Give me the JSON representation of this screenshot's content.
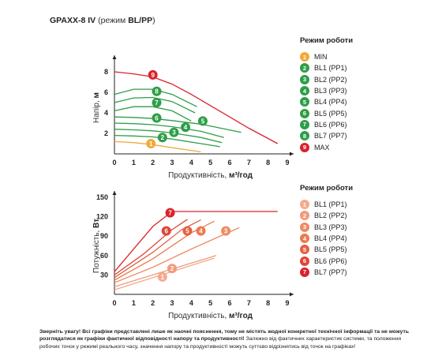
{
  "header": {
    "model_prefix": "GPA",
    "model_mid": "XX-8 IV",
    "subtitle_prefix": "(режим ",
    "subtitle_mode": "BL/PP",
    "subtitle_suffix": ")"
  },
  "legend_top": {
    "title": "Режим роботи",
    "items": [
      {
        "num": "1",
        "label": "MIN",
        "color": "#F2A93B"
      },
      {
        "num": "2",
        "label": "BL1 (PP1)",
        "color": "#2E9E48"
      },
      {
        "num": "3",
        "label": "BL2 (PP2)",
        "color": "#2E9E48"
      },
      {
        "num": "4",
        "label": "BL3 (PP3)",
        "color": "#2E9E48"
      },
      {
        "num": "5",
        "label": "BL4 (PP4)",
        "color": "#2E9E48"
      },
      {
        "num": "6",
        "label": "BL5 (PP5)",
        "color": "#2E9E48"
      },
      {
        "num": "7",
        "label": "BL6 (PP6)",
        "color": "#2E9E48"
      },
      {
        "num": "8",
        "label": "BL7 (PP7)",
        "color": "#2E9E48"
      },
      {
        "num": "9",
        "label": "MAX",
        "color": "#D9232D"
      }
    ]
  },
  "legend_bottom": {
    "title": "Режим роботи",
    "items": [
      {
        "num": "1",
        "label": "BL1 (PP1)",
        "color": "#F4A98E"
      },
      {
        "num": "2",
        "label": "BL2 (PP2)",
        "color": "#F09B7A"
      },
      {
        "num": "3",
        "label": "BL3 (PP3)",
        "color": "#EE8B62"
      },
      {
        "num": "4",
        "label": "BL4 (PP4)",
        "color": "#EB7A4E"
      },
      {
        "num": "5",
        "label": "BL5 (PP5)",
        "color": "#E56041"
      },
      {
        "num": "6",
        "label": "BL6 (PP6)",
        "color": "#DE4638"
      },
      {
        "num": "7",
        "label": "BL7 (PP7)",
        "color": "#D9232D"
      }
    ]
  },
  "chart_data": [
    {
      "type": "line",
      "title": "",
      "xlabel_text": "Продуктивність,",
      "xlabel_unit": "м³/год",
      "ylabel_text": "Напір,",
      "ylabel_unit": "м",
      "xlim": [
        0,
        9
      ],
      "ylim": [
        0,
        9
      ],
      "xticks": [
        "0",
        "1",
        "2",
        "3",
        "4",
        "5",
        "6",
        "7",
        "8",
        "9"
      ],
      "yticks": [
        "2",
        "4",
        "6",
        "8"
      ],
      "grid": false,
      "legend_position": "right",
      "series": [
        {
          "name": "MIN",
          "num": "1",
          "color": "#F2A93B",
          "x": [
            0,
            1,
            2,
            3,
            4.5
          ],
          "y": [
            1.2,
            1.1,
            0.9,
            0.6,
            0.2
          ],
          "marker": [
            1.9,
            1.0
          ]
        },
        {
          "name": "BL1 (PP1)",
          "num": "2",
          "color": "#2E9E48",
          "x": [
            0,
            1,
            2,
            3,
            4.5,
            5.5
          ],
          "y": [
            1.8,
            1.75,
            1.65,
            1.45,
            1.0,
            0.7
          ],
          "marker": [
            2.5,
            1.6
          ]
        },
        {
          "name": "BL2 (PP2)",
          "num": "3",
          "color": "#2E9E48",
          "x": [
            0,
            1,
            2,
            3,
            4.5,
            5.6
          ],
          "y": [
            2.4,
            2.35,
            2.25,
            2.05,
            1.6,
            1.1
          ],
          "marker": [
            3.1,
            2.1
          ]
        },
        {
          "name": "BL3 (PP3)",
          "num": "4",
          "color": "#2E9E48",
          "x": [
            0,
            1,
            2,
            3,
            4.5,
            5.7
          ],
          "y": [
            3.0,
            2.95,
            2.85,
            2.65,
            2.2,
            1.6
          ],
          "marker": [
            3.7,
            2.6
          ]
        },
        {
          "name": "BL4 (PP4)",
          "num": "5",
          "color": "#2E9E48",
          "x": [
            0,
            1,
            2,
            3,
            4.5,
            6.6
          ],
          "y": [
            3.6,
            3.55,
            3.45,
            3.25,
            2.9,
            2.1
          ],
          "marker": [
            4.6,
            3.2
          ]
        },
        {
          "name": "BL5 (PP5)",
          "num": "6",
          "color": "#2E9E48",
          "x": [
            0,
            1,
            2,
            3,
            4
          ],
          "y": [
            4.2,
            4.6,
            4.6,
            4.2,
            3.2
          ],
          "marker": [
            2.2,
            3.5
          ]
        },
        {
          "name": "BL6 (PP6)",
          "num": "7",
          "color": "#2E9E48",
          "x": [
            0,
            1,
            2,
            3,
            4.2
          ],
          "y": [
            5.0,
            5.45,
            5.5,
            5.1,
            4.0
          ],
          "marker": [
            2.2,
            5.0
          ]
        },
        {
          "name": "BL7 (PP7)",
          "num": "8",
          "color": "#2E9E48",
          "x": [
            0,
            1,
            2,
            3,
            4.3
          ],
          "y": [
            5.8,
            6.3,
            6.3,
            5.8,
            4.6
          ],
          "marker": [
            2.2,
            6.1
          ]
        },
        {
          "name": "MAX",
          "num": "9",
          "color": "#D9232D",
          "x": [
            0,
            1,
            2,
            3,
            4,
            5,
            6,
            7,
            8.5
          ],
          "y": [
            8.0,
            7.8,
            7.5,
            6.8,
            5.8,
            4.7,
            3.6,
            2.5,
            1.0
          ],
          "marker": [
            2.0,
            7.7
          ]
        }
      ]
    },
    {
      "type": "line",
      "title": "",
      "xlabel_text": "Продуктивність,",
      "xlabel_unit": "м³/год",
      "ylabel_text": "Потужність,",
      "ylabel_unit": "Вт",
      "xlim": [
        0,
        9
      ],
      "ylim": [
        0,
        150
      ],
      "xticks": [
        "0",
        "1",
        "2",
        "3",
        "4",
        "5",
        "6",
        "7",
        "8",
        "9"
      ],
      "yticks": [
        "30",
        "60",
        "90",
        "120",
        "150"
      ],
      "grid": false,
      "legend_position": "right",
      "series": [
        {
          "name": "BL1 (PP1)",
          "num": "1",
          "color": "#F4A98E",
          "x": [
            0,
            5.2
          ],
          "y": [
            7,
            56
          ],
          "marker": [
            2.5,
            27
          ]
        },
        {
          "name": "BL2 (PP2)",
          "num": "2",
          "color": "#F09B7A",
          "x": [
            0,
            5.3
          ],
          "y": [
            12,
            60
          ],
          "marker": [
            3.0,
            40
          ]
        },
        {
          "name": "BL3 (PP3)",
          "num": "3",
          "color": "#EE8B62",
          "x": [
            0,
            2,
            4,
            6.5
          ],
          "y": [
            18,
            42,
            70,
            103
          ],
          "marker": [
            5.8,
            98
          ]
        },
        {
          "name": "BL4 (PP4)",
          "num": "4",
          "color": "#EB7A4E",
          "x": [
            0,
            2,
            4,
            5.2
          ],
          "y": [
            22,
            55,
            95,
            113
          ],
          "marker": [
            4.5,
            98
          ]
        },
        {
          "name": "BL5 (PP5)",
          "num": "5",
          "color": "#E56041",
          "x": [
            0,
            2,
            3.5,
            4.5
          ],
          "y": [
            26,
            65,
            100,
            115
          ],
          "marker": [
            3.8,
            98
          ]
        },
        {
          "name": "BL6 (PP6)",
          "num": "6",
          "color": "#DE4638",
          "x": [
            0,
            1.5,
            3.0,
            3.8
          ],
          "y": [
            30,
            62,
            100,
            116
          ],
          "marker": [
            2.7,
            98
          ]
        },
        {
          "name": "BL7 (PP7)",
          "num": "7",
          "color": "#D9232D",
          "x": [
            0,
            1,
            2,
            3,
            4,
            6,
            8.5
          ],
          "y": [
            35,
            70,
            105,
            128,
            128,
            128,
            128
          ],
          "marker": [
            2.9,
            126
          ]
        }
      ]
    }
  ],
  "footnote": {
    "strong": "Зверніть увагу! Всі графіки представлені лише як наочні пояснення, тому не містять жодної конкретної технічної інформації та не можуть розглядатися як графіки фактичної відповідності напору та продуктивності!",
    "rest": "Залежно від фактичних характеристик системи, та положення робочих точок у режимі реального часу, значення напору та продуктивності можуть суттєво відрізнятись від точок на графіках!"
  }
}
